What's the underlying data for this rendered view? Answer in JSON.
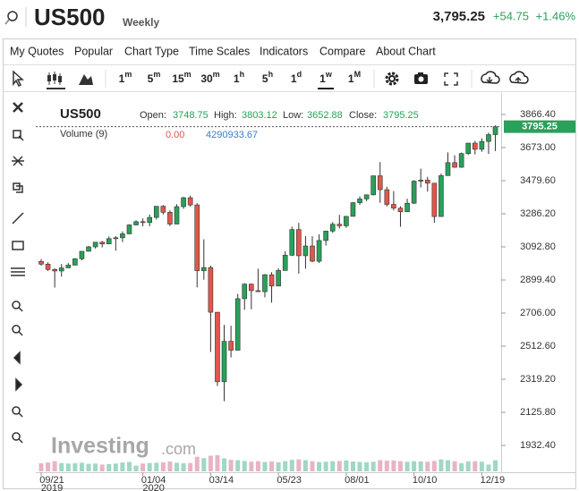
{
  "header": {
    "symbol": "US500",
    "period": "Weekly",
    "price": "3,795.25",
    "change": "+54.75",
    "percent": "+1.46%"
  },
  "menu": [
    "My Quotes",
    "Popular",
    "Chart Type",
    "Time Scales",
    "Indicators",
    "Compare",
    "About Chart"
  ],
  "time_scales": [
    [
      "1",
      "m"
    ],
    [
      "5",
      "m"
    ],
    [
      "15",
      "m"
    ],
    [
      "30",
      "m"
    ],
    [
      "1",
      "h"
    ],
    [
      "5",
      "h"
    ],
    [
      "1",
      "d"
    ],
    [
      "1",
      "w"
    ],
    [
      "1",
      "M"
    ]
  ],
  "legend": {
    "symbol": "US500",
    "open": "Open:",
    "high": "High:",
    "low": "Low:",
    "close": "Close:",
    "volume": "Volume (9)",
    "volume_zero": "0.00"
  },
  "watermark": [
    "Investing",
    ".com"
  ],
  "chart_data": {
    "type": "candlestick",
    "categories": [
      "09/21",
      null,
      null,
      null,
      null,
      null,
      null,
      null,
      null,
      null,
      null,
      null,
      null,
      null,
      null,
      "01/04",
      null,
      null,
      null,
      null,
      null,
      null,
      null,
      null,
      null,
      "03/14",
      null,
      null,
      null,
      null,
      null,
      null,
      null,
      null,
      null,
      "05/23",
      null,
      null,
      null,
      null,
      null,
      null,
      null,
      null,
      null,
      "08/01",
      null,
      null,
      null,
      null,
      null,
      null,
      null,
      null,
      null,
      "10/10",
      null,
      null,
      null,
      null,
      null,
      null,
      null,
      null,
      null,
      "12/19",
      null,
      null
    ],
    "category_years": [
      "2019",
      null,
      null,
      null,
      null,
      null,
      null,
      null,
      null,
      null,
      null,
      null,
      null,
      null,
      null,
      "2020",
      null,
      null,
      null,
      null,
      null,
      null,
      null,
      null,
      null,
      null,
      null,
      null,
      null,
      null,
      null,
      null,
      null,
      null,
      null,
      null,
      null,
      null,
      null,
      null,
      null,
      null,
      null,
      null,
      null,
      null,
      null,
      null,
      null,
      null,
      null,
      null,
      null,
      null,
      null,
      null,
      null,
      null,
      null,
      null,
      null,
      null,
      null,
      null,
      null,
      null,
      null,
      null
    ],
    "open": [
      3008,
      2992,
      2961,
      2952,
      2970,
      2986,
      3023,
      3067,
      3093,
      3120,
      3110,
      3141,
      3146,
      3169,
      3221,
      3240,
      3235,
      3265,
      3330,
      3295,
      3226,
      3328,
      3380,
      3338,
      2954,
      2972,
      2711,
      2305,
      2541,
      2489,
      2790,
      2875,
      2837,
      2831,
      2930,
      2864,
      2955,
      3044,
      3194,
      3041,
      3098,
      3009,
      3130,
      3185,
      3225,
      3216,
      3271,
      3351,
      3373,
      3397,
      3508,
      3427,
      3341,
      3319,
      3298,
      3348,
      3477,
      3483,
      3465,
      3270,
      3509,
      3585,
      3558,
      3638,
      3699,
      3663,
      3709,
      3748.75
    ],
    "high": [
      3022,
      3003,
      2967,
      2993,
      2998,
      3027,
      3067,
      3098,
      3120,
      3127,
      3154,
      3156,
      3183,
      3225,
      3248,
      3259,
      3282,
      3330,
      3337,
      3306,
      3342,
      3385,
      3393,
      3348,
      3137,
      2983,
      2712,
      2637,
      2632,
      2818,
      2880,
      2879,
      2965,
      2934,
      2945,
      2968,
      3068,
      3211,
      3233,
      3156,
      3155,
      3166,
      3187,
      3238,
      3280,
      3272,
      3354,
      3388,
      3399,
      3509,
      3588,
      3444,
      3419,
      3330,
      3374,
      3482,
      3550,
      3502,
      3466,
      3521,
      3645,
      3628,
      3644,
      3699,
      3712,
      3727,
      3760,
      3803.12
    ],
    "low": [
      2983,
      2952,
      2855,
      2919,
      2971,
      2985,
      3014,
      3066,
      3083,
      3090,
      3110,
      3070,
      3121,
      3166,
      3218,
      3213,
      3214,
      3253,
      3282,
      3214,
      3226,
      3315,
      3328,
      2856,
      2901,
      2478,
      2280,
      2191,
      2447,
      2489,
      2725,
      2728,
      2830,
      2798,
      2767,
      2865,
      2955,
      3039,
      2936,
      2965,
      3003,
      2999,
      3101,
      3174,
      3200,
      3204,
      3270,
      3338,
      3360,
      3393,
      3350,
      3329,
      3306,
      3210,
      3298,
      3343,
      3440,
      3415,
      3234,
      3270,
      3511,
      3555,
      3555,
      3630,
      3633,
      3648,
      3636,
      3652.88
    ],
    "close": [
      2992,
      2961,
      2952,
      2970,
      2986,
      3023,
      3067,
      3093,
      3120,
      3110,
      3141,
      3146,
      3169,
      3221,
      3240,
      3235,
      3265,
      3330,
      3295,
      3226,
      3328,
      3380,
      3338,
      2954,
      2972,
      2711,
      2305,
      2541,
      2489,
      2790,
      2875,
      2837,
      2831,
      2930,
      2864,
      2955,
      3044,
      3194,
      3041,
      3098,
      3009,
      3130,
      3185,
      3225,
      3216,
      3271,
      3351,
      3373,
      3397,
      3508,
      3427,
      3341,
      3319,
      3298,
      3348,
      3477,
      3483,
      3465,
      3270,
      3509,
      3585,
      3558,
      3638,
      3699,
      3663,
      3709,
      3748.75,
      3795.25
    ],
    "volume": [
      3100000,
      3400000,
      3900000,
      3200000,
      3000000,
      3100000,
      3300000,
      2900000,
      3000000,
      2600000,
      2800000,
      3000000,
      3400000,
      3600000,
      2200000,
      3000000,
      3200000,
      3300000,
      3500000,
      3800000,
      3300000,
      3100000,
      3200000,
      5600000,
      5100000,
      6000000,
      6200000,
      5000000,
      4400000,
      4300000,
      4000000,
      3700000,
      3900000,
      3600000,
      3800000,
      3500000,
      3900000,
      4400000,
      4600000,
      4300000,
      3900000,
      3600000,
      3700000,
      3900000,
      4000000,
      4200000,
      3800000,
      3600000,
      3500000,
      3700000,
      4300000,
      4100000,
      4200000,
      3900000,
      3700000,
      3900000,
      3800000,
      3700000,
      4000000,
      4600000,
      4300000,
      3900000,
      3100000,
      3800000,
      3900000,
      3700000,
      2600000,
      4290933.67
    ],
    "up_color": "#2aa05a",
    "down_color": "#e2564b",
    "volume_up_color": "#9fd8c4",
    "volume_down_color": "#e8b4c4",
    "ylim": [
      1776,
      3950
    ],
    "yticks": [
      {
        "value": 3866.4,
        "label": "3866.40"
      },
      {
        "value": 3673,
        "label": "3673.00"
      },
      {
        "value": 3479.6,
        "label": "3479.60"
      },
      {
        "value": 3286.2,
        "label": "3286.20"
      },
      {
        "value": 3092.8,
        "label": "3092.80"
      },
      {
        "value": 2899.4,
        "label": "2899.40"
      },
      {
        "value": 2706,
        "label": "2706.00"
      },
      {
        "value": 2512.6,
        "label": "2512.60"
      },
      {
        "value": 2319.2,
        "label": "2319.20"
      },
      {
        "value": 2125.8,
        "label": "2125.80"
      },
      {
        "value": 1932.4,
        "label": "1932.40"
      }
    ]
  }
}
